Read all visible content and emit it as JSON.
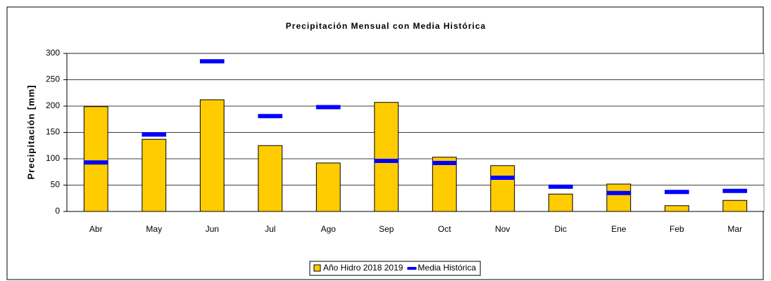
{
  "chart_data": {
    "type": "bar",
    "title": "Precipitación Mensual con Media Histórica",
    "y_label": "Precipitación [mm]",
    "categories": [
      "Abr",
      "May",
      "Jun",
      "Jul",
      "Ago",
      "Sep",
      "Oct",
      "Nov",
      "Dic",
      "Ene",
      "Feb",
      "Mar"
    ],
    "series": [
      {
        "name": "Año Hidro 2018 2019",
        "type": "bar",
        "color": "#ffcc00",
        "values": [
          199,
          137,
          212,
          125,
          92,
          207,
          103,
          87,
          33,
          52,
          11,
          21
        ]
      },
      {
        "name": "Media Histórica",
        "type": "marker",
        "color": "#0000ff",
        "values": [
          93,
          146,
          285,
          181,
          198,
          96,
          92,
          64,
          47,
          35,
          37,
          39
        ]
      }
    ],
    "ylim": [
      0,
      300
    ],
    "yticks": [
      0,
      50,
      100,
      150,
      200,
      250,
      300
    ],
    "grid": true,
    "legend": "bottom"
  }
}
